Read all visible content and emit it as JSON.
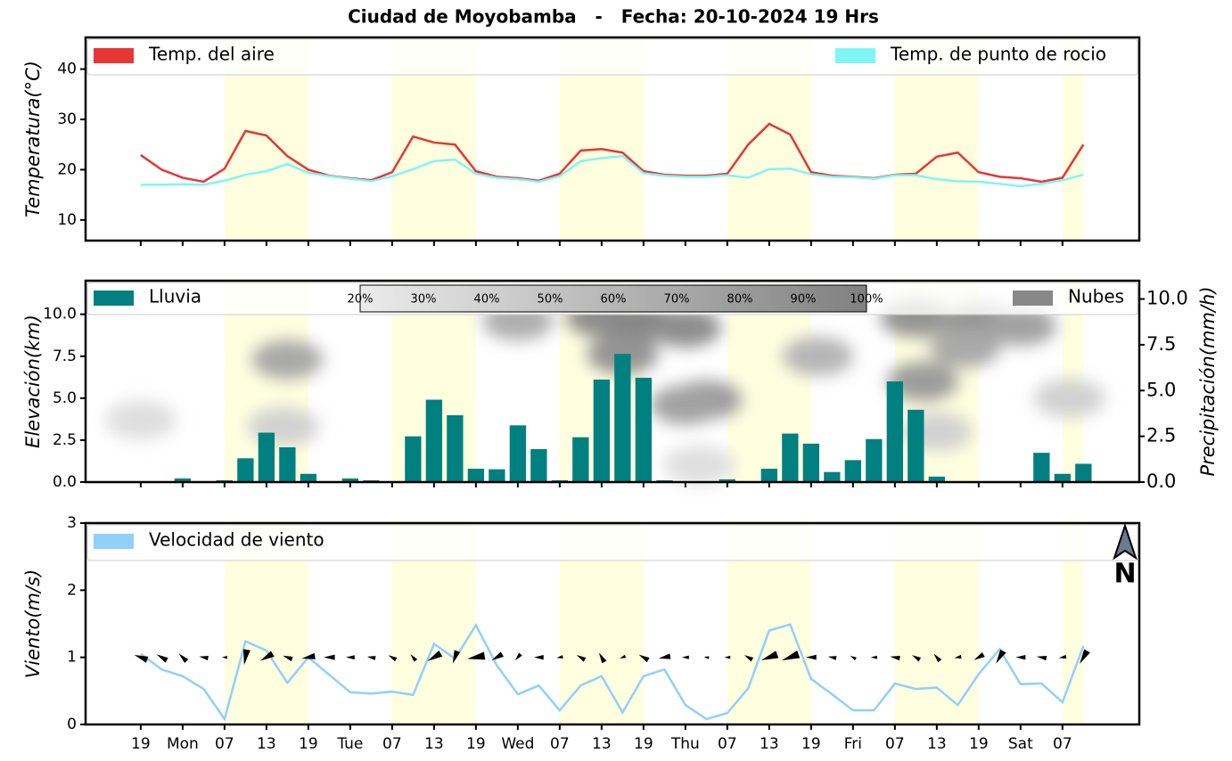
{
  "title": "Ciudad de Moyobamba   -   Fecha: 20-10-2024 19 Hrs",
  "chart_data": [
    {
      "type": "line",
      "ylabel": "Temperatura(°C)",
      "x": [
        0,
        3,
        6,
        9,
        12,
        15,
        18,
        21,
        24,
        27,
        30,
        33,
        36,
        39,
        42,
        45,
        48,
        51,
        54,
        57,
        60,
        63,
        66,
        69,
        72,
        75,
        78,
        81,
        84,
        87,
        90,
        93,
        96,
        99,
        102,
        105,
        108,
        111,
        114,
        117,
        120,
        123,
        126,
        129,
        132,
        135
      ],
      "xlim": [
        -7.9,
        143
      ],
      "xticks": [
        0,
        6,
        12,
        18,
        24,
        30,
        36,
        42,
        48,
        54,
        60,
        66,
        72,
        78,
        84,
        90,
        96,
        102,
        108,
        114,
        120,
        126,
        132
      ],
      "daylight": [
        [
          12,
          24
        ],
        [
          36,
          48
        ],
        [
          60,
          72
        ],
        [
          84,
          96
        ],
        [
          108,
          120
        ],
        [
          132,
          135
        ]
      ],
      "ylim": [
        5.9,
        46.3
      ],
      "yticks": [
        10,
        20,
        30,
        40
      ],
      "series": [
        {
          "name": "Temp. del aire",
          "color": "#e83535",
          "values": [
            22.9,
            20,
            18.4,
            17.6,
            20.2,
            27.7,
            26.8,
            22.7,
            20,
            18.8,
            18.3,
            17.9,
            19.5,
            26.6,
            25.4,
            25,
            19.7,
            18.6,
            18.3,
            17.8,
            19.2,
            23.8,
            24.1,
            23.4,
            19.7,
            19,
            18.8,
            18.8,
            19.2,
            25,
            29.1,
            27,
            19.5,
            18.8,
            18.6,
            18.3,
            19,
            19.2,
            22.6,
            23.4,
            19.5,
            18.6,
            18.3,
            17.6,
            18.4,
            25
          ]
        },
        {
          "name": "Temp. de punto de rocio",
          "color": "#80f5f5",
          "values": [
            17,
            17,
            17.1,
            17,
            17.8,
            19,
            19.7,
            21.1,
            19.4,
            18.7,
            18.2,
            17.7,
            18.7,
            20.1,
            21.7,
            22,
            19.2,
            18.4,
            18.1,
            17.6,
            18.7,
            21.7,
            22.3,
            22.7,
            19.3,
            18.8,
            18.6,
            18.6,
            18.9,
            18.4,
            20.1,
            20.2,
            19.1,
            18.6,
            18.5,
            18.2,
            18.9,
            18.9,
            18.1,
            17.7,
            17.6,
            17.2,
            16.7,
            17.2,
            17.9,
            19
          ]
        }
      ]
    },
    {
      "type": "bar",
      "ylabel": "Elevación(km)",
      "y2label": "Precipitación(mm/h)",
      "x": [
        0,
        3,
        6,
        9,
        12,
        15,
        18,
        21,
        24,
        27,
        30,
        33,
        36,
        39,
        42,
        45,
        48,
        51,
        54,
        57,
        60,
        63,
        66,
        69,
        72,
        75,
        78,
        81,
        84,
        87,
        90,
        93,
        96,
        99,
        102,
        105,
        108,
        111,
        114,
        117,
        120,
        123,
        126,
        129,
        132,
        135
      ],
      "xlim": [
        -7.9,
        143
      ],
      "xticks": [
        0,
        6,
        12,
        18,
        24,
        30,
        36,
        42,
        48,
        54,
        60,
        66,
        72,
        78,
        84,
        90,
        96,
        102,
        108,
        114,
        120,
        126,
        132
      ],
      "daylight": [
        [
          12,
          24
        ],
        [
          36,
          48
        ],
        [
          60,
          72
        ],
        [
          84,
          96
        ],
        [
          108,
          120
        ],
        [
          132,
          135
        ]
      ],
      "ylim": [
        0,
        12
      ],
      "yticks": [
        {
          "value": 0,
          "label": "0.0"
        },
        {
          "value": 2.5,
          "label": "2.5"
        },
        {
          "value": 5,
          "label": "5.0"
        },
        {
          "value": 7.5,
          "label": "7.5"
        },
        {
          "value": 10,
          "label": "10.0"
        }
      ],
      "y2lim": [
        0,
        11
      ],
      "y2ticks": [
        {
          "value": 0,
          "label": "0.0"
        },
        {
          "value": 2.5,
          "label": "2.5"
        },
        {
          "value": 5,
          "label": "5.0"
        },
        {
          "value": 7.5,
          "label": "7.5"
        },
        {
          "value": 10,
          "label": "10.0"
        }
      ],
      "series": [
        {
          "name": "Lluvia",
          "color": "#008080",
          "axis": "y2",
          "values": [
            0,
            0,
            0.2,
            0.05,
            0.1,
            1.3,
            2.7,
            1.9,
            0.45,
            0,
            0.2,
            0.1,
            0.05,
            2.5,
            4.5,
            3.65,
            0.73,
            0.7,
            3.1,
            1.8,
            0.1,
            2.45,
            5.6,
            7,
            5.7,
            0.1,
            0.05,
            0.05,
            0.15,
            0.05,
            0.73,
            2.65,
            2.1,
            0.55,
            1.2,
            2.35,
            5.5,
            3.95,
            0.3,
            0,
            0,
            0,
            0,
            1.6,
            0.45,
            1
          ]
        }
      ],
      "clouds_name": "Nubes",
      "clouds_color": "#888888",
      "cloud_range": [
        20,
        100
      ],
      "cloud_ticks": [
        {
          "value": 20,
          "label": "20%"
        },
        {
          "value": 30,
          "label": "30%"
        },
        {
          "value": 40,
          "label": "40%"
        },
        {
          "value": 50,
          "label": "50%"
        },
        {
          "value": 60,
          "label": "60%"
        },
        {
          "value": 70,
          "label": "70%"
        },
        {
          "value": 80,
          "label": "80%"
        },
        {
          "value": 90,
          "label": "90%"
        },
        {
          "value": 100,
          "label": "100%"
        }
      ],
      "clouds": [
        {
          "x": 0,
          "elevation": 3.7,
          "coverage": 30
        },
        {
          "x": 21,
          "elevation": 7.3,
          "coverage": 70
        },
        {
          "x": 20.4,
          "elevation": 3.3,
          "coverage": 40
        },
        {
          "x": 54,
          "elevation": 9.6,
          "coverage": 65
        },
        {
          "x": 66,
          "elevation": 9.8,
          "coverage": 90
        },
        {
          "x": 72,
          "elevation": 9.5,
          "coverage": 95
        },
        {
          "x": 69,
          "elevation": 7.6,
          "coverage": 85
        },
        {
          "x": 78,
          "elevation": 9.2,
          "coverage": 90
        },
        {
          "x": 81,
          "elevation": 4.9,
          "coverage": 80
        },
        {
          "x": 78,
          "elevation": 4.6,
          "coverage": 75
        },
        {
          "x": 97,
          "elevation": 7.5,
          "coverage": 60
        },
        {
          "x": 111,
          "elevation": 9.8,
          "coverage": 85
        },
        {
          "x": 120,
          "elevation": 9.6,
          "coverage": 85
        },
        {
          "x": 126,
          "elevation": 9.3,
          "coverage": 75
        },
        {
          "x": 112,
          "elevation": 6,
          "coverage": 80
        },
        {
          "x": 118,
          "elevation": 8,
          "coverage": 70
        },
        {
          "x": 133,
          "elevation": 5,
          "coverage": 40
        },
        {
          "x": 114,
          "elevation": 3,
          "coverage": 40
        },
        {
          "x": 80,
          "elevation": 1,
          "coverage": 30
        }
      ]
    },
    {
      "type": "line",
      "ylabel": "Viento(m/s)",
      "north_label": "N",
      "x": [
        0,
        3,
        6,
        9,
        12,
        15,
        18,
        21,
        24,
        27,
        30,
        33,
        36,
        39,
        42,
        45,
        48,
        51,
        54,
        57,
        60,
        63,
        66,
        69,
        72,
        75,
        78,
        81,
        84,
        87,
        90,
        93,
        96,
        99,
        102,
        105,
        108,
        111,
        114,
        117,
        120,
        123,
        126,
        129,
        132,
        135
      ],
      "xlim": [
        -7.9,
        143
      ],
      "xticks": [
        {
          "value": 0,
          "label": "19"
        },
        {
          "value": 6,
          "label": "Mon"
        },
        {
          "value": 12,
          "label": "07"
        },
        {
          "value": 18,
          "label": "13"
        },
        {
          "value": 24,
          "label": "19"
        },
        {
          "value": 30,
          "label": "Tue"
        },
        {
          "value": 36,
          "label": "07"
        },
        {
          "value": 42,
          "label": "13"
        },
        {
          "value": 48,
          "label": "19"
        },
        {
          "value": 54,
          "label": "Wed"
        },
        {
          "value": 60,
          "label": "07"
        },
        {
          "value": 66,
          "label": "13"
        },
        {
          "value": 72,
          "label": "19"
        },
        {
          "value": 78,
          "label": "Thu"
        },
        {
          "value": 84,
          "label": "07"
        },
        {
          "value": 90,
          "label": "13"
        },
        {
          "value": 96,
          "label": "19"
        },
        {
          "value": 102,
          "label": "Fri"
        },
        {
          "value": 108,
          "label": "07"
        },
        {
          "value": 114,
          "label": "13"
        },
        {
          "value": 120,
          "label": "19"
        },
        {
          "value": 126,
          "label": "Sat"
        },
        {
          "value": 132,
          "label": "07"
        }
      ],
      "daylight": [
        [
          12,
          24
        ],
        [
          36,
          48
        ],
        [
          60,
          72
        ],
        [
          84,
          96
        ],
        [
          108,
          120
        ],
        [
          132,
          135
        ]
      ],
      "ylim": [
        0,
        3
      ],
      "yticks": [
        0,
        1,
        2,
        3
      ],
      "series": [
        {
          "name": "Velocidad de viento",
          "color": "#90d0fa",
          "values": [
            1.05,
            0.82,
            0.72,
            0.53,
            0.08,
            1.24,
            1.1,
            0.62,
            1,
            0.74,
            0.48,
            0.46,
            0.49,
            0.44,
            1.2,
            0.98,
            1.48,
            0.88,
            0.45,
            0.58,
            0.21,
            0.58,
            0.72,
            0.18,
            0.72,
            0.82,
            0.29,
            0.08,
            0.17,
            0.54,
            1.4,
            1.49,
            0.68,
            0.45,
            0.21,
            0.21,
            0.61,
            0.53,
            0.55,
            0.29,
            0.75,
            1.12,
            0.6,
            0.61,
            0.33,
            1.17
          ],
          "direction_deg": [
            290,
            300,
            315,
            280,
            270,
            190,
            240,
            290,
            260,
            270,
            270,
            280,
            300,
            320,
            240,
            200,
            260,
            240,
            220,
            270,
            260,
            300,
            330,
            250,
            300,
            260,
            270,
            280,
            270,
            300,
            250,
            250,
            270,
            280,
            300,
            270,
            280,
            300,
            320,
            260,
            240,
            210,
            270,
            280,
            260,
            210
          ]
        }
      ]
    }
  ]
}
